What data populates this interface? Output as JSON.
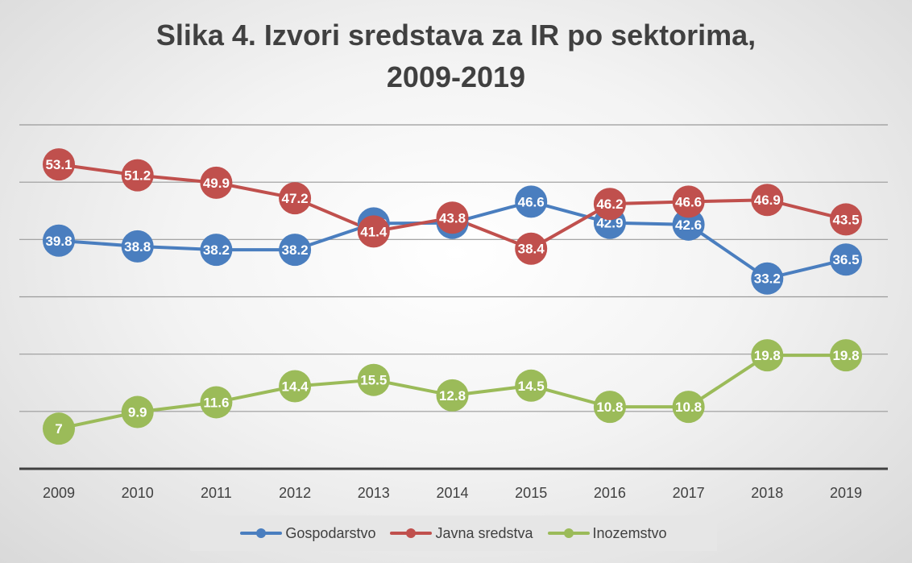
{
  "chart_data": {
    "type": "line",
    "title_line1": "Slika 4. Izvori sredstava za IR po sektorima,",
    "title_line2": "2009-2019",
    "x": [
      "2009",
      "2010",
      "2011",
      "2012",
      "2013",
      "2014",
      "2015",
      "2016",
      "2017",
      "2018",
      "2019"
    ],
    "ylim": [
      0,
      60
    ],
    "grid": true,
    "legend_position": "bottom",
    "series": [
      {
        "name": "Gospodarstvo",
        "color": "#4a7ebf",
        "values": [
          39.8,
          38.8,
          38.2,
          38.2,
          42.8,
          42.9,
          46.6,
          42.9,
          42.6,
          33.2,
          36.5
        ]
      },
      {
        "name": "Javna sredstva",
        "color": "#c0504d",
        "values": [
          53.1,
          51.2,
          49.9,
          47.2,
          41.4,
          43.8,
          38.4,
          46.2,
          46.6,
          46.9,
          43.5
        ]
      },
      {
        "name": "Inozemstvo",
        "color": "#9bbb59",
        "values": [
          7,
          9.9,
          11.6,
          14.4,
          15.5,
          12.8,
          14.5,
          10.8,
          10.8,
          19.8,
          19.8
        ]
      }
    ]
  }
}
